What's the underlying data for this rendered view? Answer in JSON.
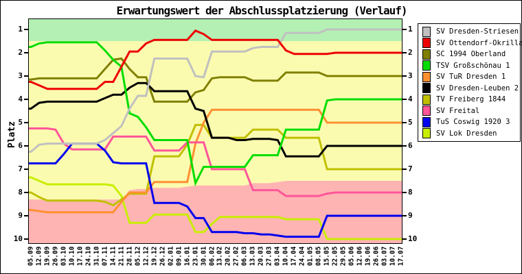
{
  "chart_data": {
    "type": "line",
    "title": "Erwartungswert der Abschlussplatzierung (Verlauf)",
    "ylabel": "Platz",
    "ylim": [
      1,
      10
    ],
    "y_axis_inverted": true,
    "grid": false,
    "legend_position": "right",
    "yticks": [
      1,
      2,
      3,
      4,
      5,
      6,
      7,
      8,
      9,
      10
    ],
    "x_labels": [
      "05.09",
      "12.09",
      "19.09",
      "26.09",
      "03.10",
      "10.10",
      "17.10",
      "24.10",
      "31.10",
      "07.11",
      "14.11",
      "21.11",
      "28.11",
      "05.12",
      "12.12",
      "19.12",
      "26.12",
      "02.01",
      "09.01",
      "16.01",
      "23.01",
      "30.01",
      "06.02",
      "13.02",
      "20.02",
      "27.02",
      "06.03",
      "13.03",
      "20.03",
      "27.03",
      "03.04",
      "10.04",
      "17.04",
      "24.04",
      "01.05",
      "08.05",
      "15.05",
      "22.05",
      "29.05",
      "05.06",
      "12.06",
      "19.06",
      "26.06",
      "03.07",
      "10.07",
      "17.07"
    ],
    "zones": {
      "promotion_zone": {
        "color": "#b4f0b4",
        "from_platz": 0.5,
        "to_platz": 1.5
      },
      "mid_zone_color": "#fbfbb0",
      "relegation_zone_color": "#ffb4b4",
      "relegation_boundary_platz": [
        8.3,
        8.3,
        8.3,
        8.3,
        8.3,
        8.3,
        8.3,
        8.3,
        8.3,
        8.3,
        8.3,
        8.3,
        7.9,
        7.85,
        7.85,
        7.8,
        7.8,
        7.8,
        7.8,
        7.75,
        7.7,
        7.7,
        7.7,
        7.7,
        7.7,
        7.7,
        7.7,
        7.6,
        7.6,
        7.6,
        7.55,
        7.5,
        7.5,
        7.5,
        7.5,
        7.5,
        7.5,
        7.5,
        7.5,
        7.5,
        7.5,
        7.5,
        7.5,
        7.5,
        7.5,
        7.5
      ]
    },
    "series": [
      {
        "name": "SV Dresden-Striesen",
        "color": "#c0c0c0",
        "values": [
          6.25,
          5.95,
          5.9,
          5.9,
          5.9,
          5.9,
          5.9,
          5.9,
          5.9,
          5.75,
          5.45,
          5.15,
          4.4,
          3.85,
          3.85,
          2.25,
          2.25,
          2.25,
          2.25,
          2.25,
          3.0,
          3.05,
          1.95,
          1.95,
          1.95,
          1.95,
          1.95,
          1.8,
          1.75,
          1.75,
          1.75,
          1.15,
          1.15,
          1.15,
          1.15,
          1.15,
          1.0,
          1.0,
          1.0,
          1.0,
          1.0,
          1.0,
          1.0,
          1.0,
          1.0,
          1.0
        ]
      },
      {
        "name": "SV Ottendorf-Okrilla",
        "color": "#ee0000",
        "values": [
          3.25,
          3.4,
          3.55,
          3.55,
          3.55,
          3.55,
          3.55,
          3.55,
          3.55,
          3.25,
          3.25,
          2.6,
          1.95,
          1.95,
          1.6,
          1.45,
          1.45,
          1.45,
          1.45,
          1.45,
          1.05,
          1.2,
          1.45,
          1.45,
          1.45,
          1.45,
          1.45,
          1.45,
          1.45,
          1.45,
          1.45,
          1.9,
          2.05,
          2.05,
          2.05,
          2.05,
          2.05,
          2.0,
          2.0,
          2.0,
          2.0,
          2.0,
          2.0,
          2.0,
          2.0,
          2.0
        ]
      },
      {
        "name": "SC 1994 Oberland",
        "color": "#808000",
        "values": [
          3.15,
          3.1,
          3.1,
          3.1,
          3.1,
          3.1,
          3.1,
          3.1,
          3.1,
          2.7,
          2.3,
          2.25,
          2.7,
          3.05,
          3.05,
          4.1,
          4.1,
          4.1,
          4.1,
          4.1,
          3.7,
          3.6,
          3.1,
          3.05,
          3.05,
          3.05,
          3.05,
          3.2,
          3.2,
          3.2,
          3.2,
          2.85,
          2.85,
          2.85,
          2.85,
          2.85,
          3.0,
          3.0,
          3.0,
          3.0,
          3.0,
          3.0,
          3.0,
          3.0,
          3.0,
          3.0
        ]
      },
      {
        "name": "TSV Großschönau 1",
        "color": "#00dd00",
        "values": [
          1.75,
          1.6,
          1.55,
          1.55,
          1.55,
          1.55,
          1.55,
          1.55,
          1.55,
          1.9,
          2.3,
          2.6,
          4.6,
          4.75,
          5.2,
          5.75,
          5.75,
          5.75,
          5.75,
          5.75,
          7.6,
          6.9,
          6.9,
          6.9,
          6.9,
          6.9,
          6.9,
          6.4,
          6.4,
          6.4,
          6.4,
          5.3,
          5.3,
          5.3,
          5.3,
          5.3,
          4.05,
          4.0,
          4.0,
          4.0,
          4.0,
          4.0,
          4.0,
          4.0,
          4.0,
          4.0
        ]
      },
      {
        "name": "SV TuR Dresden 1",
        "color": "#ff9030",
        "values": [
          8.75,
          8.8,
          8.85,
          8.85,
          8.85,
          8.85,
          8.85,
          8.85,
          8.85,
          8.85,
          8.85,
          8.4,
          8.0,
          8.0,
          8.0,
          7.55,
          7.55,
          7.55,
          7.55,
          7.55,
          5.9,
          5.0,
          4.45,
          4.45,
          4.45,
          4.45,
          4.45,
          4.45,
          4.45,
          4.45,
          4.45,
          4.45,
          4.45,
          4.45,
          4.45,
          4.45,
          5.0,
          5.0,
          5.0,
          5.0,
          5.0,
          5.0,
          5.0,
          5.0,
          5.0,
          5.0
        ]
      },
      {
        "name": "SV Dresden-Leuben 2",
        "color": "#000000",
        "values": [
          4.4,
          4.15,
          4.1,
          4.1,
          4.1,
          4.1,
          4.1,
          4.1,
          4.1,
          3.95,
          3.8,
          3.8,
          3.5,
          3.3,
          3.3,
          3.65,
          3.65,
          3.65,
          3.65,
          3.65,
          4.4,
          4.5,
          5.65,
          5.65,
          5.65,
          5.75,
          5.75,
          5.7,
          5.7,
          5.7,
          5.75,
          6.45,
          6.45,
          6.45,
          6.45,
          6.45,
          6.0,
          6.0,
          6.0,
          6.0,
          6.0,
          6.0,
          6.0,
          6.0,
          6.0,
          6.0
        ]
      },
      {
        "name": "TV Freiberg 1844",
        "color": "#c0c000",
        "values": [
          8.0,
          8.2,
          8.35,
          8.35,
          8.35,
          8.35,
          8.35,
          8.35,
          8.35,
          8.4,
          8.55,
          8.3,
          8.05,
          8.05,
          8.05,
          6.45,
          6.45,
          6.45,
          6.45,
          5.95,
          5.1,
          5.1,
          5.65,
          5.65,
          5.65,
          5.65,
          5.65,
          5.3,
          5.3,
          5.3,
          5.3,
          5.65,
          5.65,
          5.65,
          5.65,
          5.65,
          7.0,
          7.0,
          7.0,
          7.0,
          7.0,
          7.0,
          7.0,
          7.0,
          7.0,
          7.0
        ]
      },
      {
        "name": "SV Freital",
        "color": "#ff5599",
        "values": [
          5.25,
          5.25,
          5.25,
          5.3,
          5.9,
          6.15,
          6.15,
          6.15,
          6.15,
          6.15,
          5.6,
          5.6,
          5.6,
          5.6,
          5.6,
          6.2,
          6.2,
          6.2,
          6.2,
          5.85,
          5.85,
          5.85,
          7.0,
          7.0,
          7.0,
          7.0,
          7.0,
          7.9,
          7.9,
          7.9,
          7.9,
          8.15,
          8.15,
          8.15,
          8.15,
          8.15,
          8.05,
          8.0,
          8.0,
          8.0,
          8.0,
          8.0,
          8.0,
          8.0,
          8.0,
          8.0
        ]
      },
      {
        "name": "TuS Coswig 1920 3",
        "color": "#0000ee",
        "values": [
          6.75,
          6.75,
          6.75,
          6.75,
          6.35,
          5.9,
          5.9,
          5.9,
          5.9,
          6.2,
          6.7,
          6.75,
          6.75,
          6.75,
          6.75,
          8.45,
          8.45,
          8.45,
          8.45,
          8.6,
          9.1,
          9.1,
          9.7,
          9.7,
          9.7,
          9.7,
          9.75,
          9.75,
          9.8,
          9.8,
          9.85,
          9.9,
          9.9,
          9.9,
          9.9,
          9.9,
          9.0,
          9.0,
          9.0,
          9.0,
          9.0,
          9.0,
          9.0,
          9.0,
          9.0,
          9.0
        ]
      },
      {
        "name": "SV Lok Dresden",
        "color": "#c8ee00",
        "values": [
          7.35,
          7.5,
          7.65,
          7.65,
          7.65,
          7.65,
          7.65,
          7.65,
          7.65,
          7.65,
          7.7,
          8.15,
          9.3,
          9.3,
          9.3,
          8.95,
          8.95,
          8.95,
          8.95,
          8.95,
          9.7,
          9.7,
          9.35,
          9.05,
          9.05,
          9.05,
          9.05,
          9.05,
          9.05,
          9.05,
          9.05,
          9.15,
          9.15,
          9.15,
          9.15,
          9.15,
          10.0,
          10.0,
          10.0,
          10.0,
          10.0,
          10.0,
          10.0,
          10.0,
          10.0,
          10.0
        ]
      }
    ]
  }
}
